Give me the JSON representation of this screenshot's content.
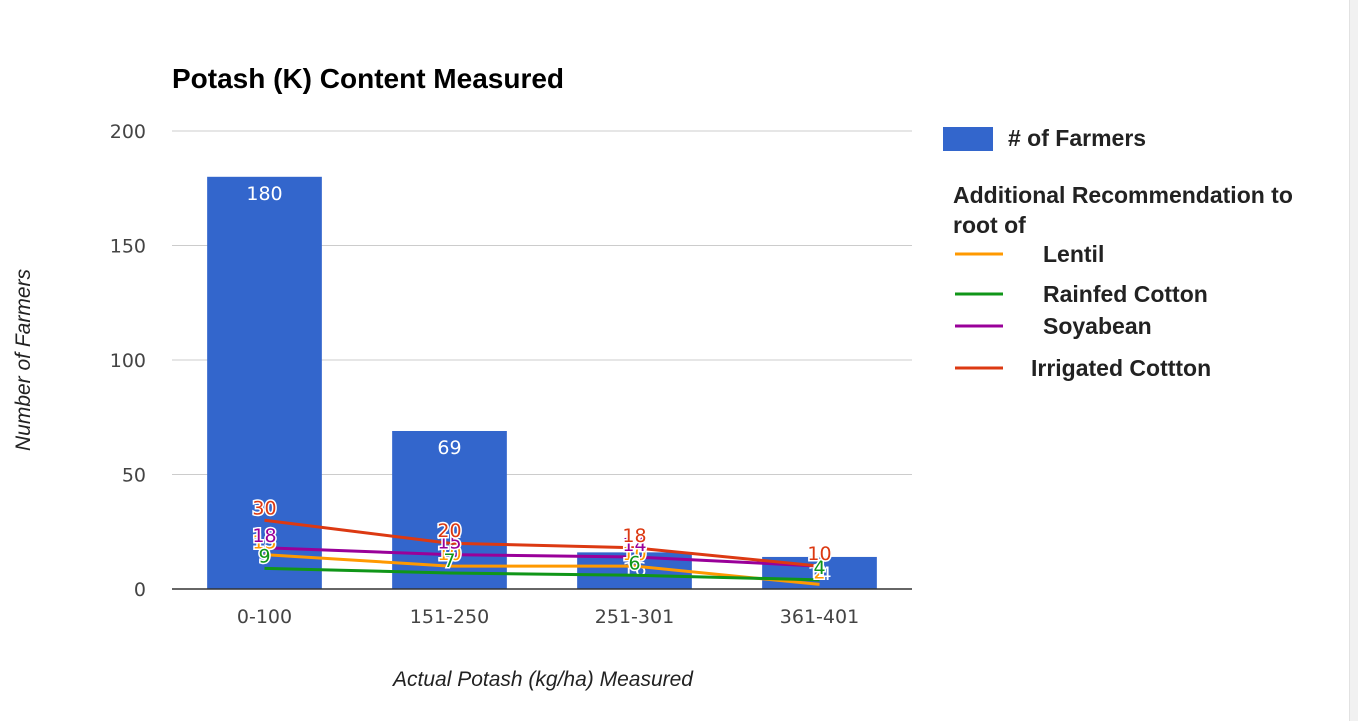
{
  "chart_data": {
    "type": "bar",
    "title": "Potash (K) Content Measured",
    "xlabel": "Actual Potash (kg/ha) Measured",
    "ylabel": "Number of Farmers",
    "categories": [
      "0-100",
      "151-250",
      "251-301",
      "361-401"
    ],
    "ylim": [
      0,
      200
    ],
    "yticks": [
      0,
      50,
      100,
      150,
      200
    ],
    "grid": true,
    "legend_position": "right",
    "bars": {
      "name": "# of Farmers",
      "color": "#3366cc",
      "values": [
        180,
        69,
        16,
        14
      ]
    },
    "legend_heading": "Additional Recommendation to root of",
    "series": [
      {
        "name": "Lentil",
        "type": "line",
        "color": "#ff9900",
        "values": [
          15,
          10,
          10,
          2
        ]
      },
      {
        "name": "Rainfed Cotton",
        "type": "line",
        "color": "#109618",
        "values": [
          9,
          7,
          6,
          4
        ]
      },
      {
        "name": "Soyabean",
        "type": "line",
        "color": "#990099",
        "values": [
          18,
          15,
          14,
          10
        ]
      },
      {
        "name": "Irrigated Cottton",
        "type": "line",
        "color": "#dc3912",
        "values": [
          30,
          20,
          18,
          10
        ]
      }
    ]
  }
}
